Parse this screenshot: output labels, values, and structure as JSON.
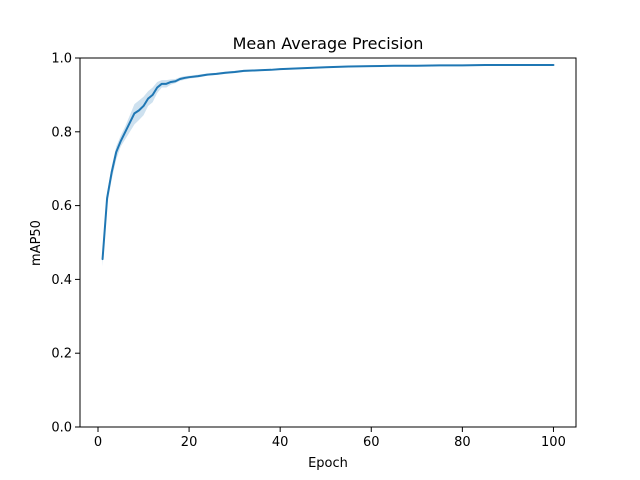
{
  "chart_data": {
    "type": "line",
    "title": "Mean Average Precision",
    "xlabel": "Epoch",
    "ylabel": "mAP50",
    "xlim": [
      -3.95,
      104.95
    ],
    "ylim": [
      0.0,
      1.0
    ],
    "xticks": [
      0,
      20,
      40,
      60,
      80,
      100
    ],
    "yticks": [
      0.0,
      0.2,
      0.4,
      0.6,
      0.8,
      1.0
    ],
    "xtick_labels": [
      "0",
      "20",
      "40",
      "60",
      "80",
      "100"
    ],
    "ytick_labels": [
      "0.0",
      "0.2",
      "0.4",
      "0.6",
      "0.8",
      "1.0"
    ],
    "grid": false,
    "line_color": "#1f77b4",
    "band_color": "#1f77b4",
    "series": [
      {
        "x": [
          1,
          2,
          3,
          4,
          5,
          6,
          7,
          8,
          9,
          10,
          11,
          12,
          13,
          14,
          15,
          16,
          17,
          18,
          19,
          20,
          22,
          24,
          26,
          28,
          30,
          32,
          34,
          36,
          38,
          40,
          42,
          44,
          46,
          48,
          50,
          55,
          60,
          65,
          70,
          75,
          80,
          85,
          90,
          95,
          100
        ],
        "values": [
          0.455,
          0.62,
          0.69,
          0.745,
          0.775,
          0.8,
          0.825,
          0.85,
          0.858,
          0.87,
          0.89,
          0.9,
          0.92,
          0.93,
          0.93,
          0.935,
          0.937,
          0.943,
          0.946,
          0.948,
          0.951,
          0.955,
          0.957,
          0.96,
          0.962,
          0.965,
          0.966,
          0.967,
          0.968,
          0.97,
          0.971,
          0.972,
          0.973,
          0.974,
          0.975,
          0.977,
          0.978,
          0.979,
          0.979,
          0.98,
          0.98,
          0.981,
          0.981,
          0.981,
          0.981
        ],
        "lower": [
          0.435,
          0.6,
          0.67,
          0.725,
          0.76,
          0.78,
          0.8,
          0.82,
          0.832,
          0.845,
          0.87,
          0.88,
          0.905,
          0.92,
          0.92,
          0.928,
          0.932,
          0.938,
          0.941,
          0.944,
          0.947,
          0.952,
          0.954,
          0.957,
          0.959,
          0.962,
          0.964,
          0.965,
          0.966,
          0.968,
          0.969,
          0.97,
          0.971,
          0.972,
          0.973,
          0.975,
          0.977,
          0.978,
          0.978,
          0.979,
          0.979,
          0.98,
          0.98,
          0.98,
          0.98
        ],
        "upper": [
          0.47,
          0.635,
          0.705,
          0.76,
          0.79,
          0.815,
          0.845,
          0.875,
          0.885,
          0.895,
          0.91,
          0.92,
          0.935,
          0.94,
          0.94,
          0.942,
          0.943,
          0.948,
          0.951,
          0.952,
          0.955,
          0.958,
          0.96,
          0.963,
          0.965,
          0.968,
          0.968,
          0.969,
          0.97,
          0.972,
          0.973,
          0.974,
          0.975,
          0.976,
          0.977,
          0.979,
          0.979,
          0.98,
          0.98,
          0.981,
          0.981,
          0.982,
          0.982,
          0.982,
          0.982
        ]
      }
    ]
  }
}
